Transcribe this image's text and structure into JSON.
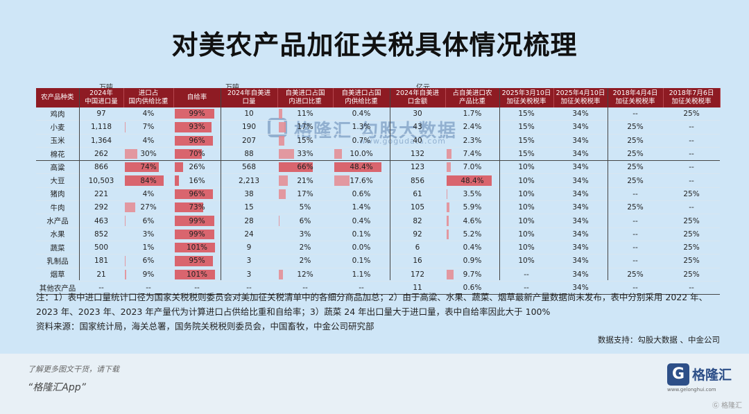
{
  "title": "对美农产品加征关税具体情况梳理",
  "units": {
    "wan_dun_1": "万吨",
    "wan_dun_2": "万吨",
    "yi_yuan": "亿元"
  },
  "headers": [
    "农产品种类",
    "2024年\n中国进口量",
    "进口占\n国内供给比重",
    "自给率",
    "2024年自美进\n口量",
    "自美进口占国\n内进口比重",
    "自美进口占国\n内供给比重",
    "2024年自美进\n口金额",
    "占自美进口农\n产品比重",
    "2025年3月10日\n加征关税税率",
    "2025年4月10日\n加征关税税率",
    "2018年4月4日\n加征关税税率",
    "2018年7月6日\n加征关税税率"
  ],
  "rows": [
    {
      "name": "鸡肉",
      "import": "97",
      "imp_share": "4%",
      "self": "99%",
      "us_imp": "10",
      "us_share": "11%",
      "us_supply": "0.4%",
      "us_amt": "30",
      "us_ag": "1.7%",
      "r1": "15%",
      "r2": "34%",
      "r3": "--",
      "r4": "25%"
    },
    {
      "name": "小麦",
      "import": "1,118",
      "imp_share": "7%",
      "self": "93%",
      "us_imp": "190",
      "us_share": "17%",
      "us_supply": "1.3%",
      "us_amt": "43",
      "us_ag": "2.4%",
      "r1": "15%",
      "r2": "34%",
      "r3": "25%",
      "r4": "--"
    },
    {
      "name": "玉米",
      "import": "1,364",
      "imp_share": "4%",
      "self": "96%",
      "us_imp": "207",
      "us_share": "15%",
      "us_supply": "0.7%",
      "us_amt": "40",
      "us_ag": "2.3%",
      "r1": "15%",
      "r2": "34%",
      "r3": "25%",
      "r4": "--"
    },
    {
      "name": "棉花",
      "import": "262",
      "imp_share": "30%",
      "self": "70%",
      "us_imp": "88",
      "us_share": "33%",
      "us_supply": "10.0%",
      "us_amt": "132",
      "us_ag": "7.4%",
      "r1": "15%",
      "r2": "34%",
      "r3": "25%",
      "r4": "--"
    },
    {
      "name": "高粱",
      "import": "866",
      "imp_share": "74%",
      "self": "26%",
      "us_imp": "568",
      "us_share": "66%",
      "us_supply": "48.4%",
      "us_amt": "123",
      "us_ag": "7.0%",
      "r1": "10%",
      "r2": "34%",
      "r3": "25%",
      "r4": "--"
    },
    {
      "name": "大豆",
      "import": "10,503",
      "imp_share": "84%",
      "self": "16%",
      "us_imp": "2,213",
      "us_share": "21%",
      "us_supply": "17.6%",
      "us_amt": "856",
      "us_ag": "48.4%",
      "r1": "10%",
      "r2": "34%",
      "r3": "25%",
      "r4": "--"
    },
    {
      "name": "猪肉",
      "import": "221",
      "imp_share": "4%",
      "self": "96%",
      "us_imp": "38",
      "us_share": "17%",
      "us_supply": "0.6%",
      "us_amt": "61",
      "us_ag": "3.5%",
      "r1": "10%",
      "r2": "34%",
      "r3": "--",
      "r4": "25%"
    },
    {
      "name": "牛肉",
      "import": "292",
      "imp_share": "27%",
      "self": "73%",
      "us_imp": "15",
      "us_share": "5%",
      "us_supply": "1.4%",
      "us_amt": "105",
      "us_ag": "5.9%",
      "r1": "10%",
      "r2": "34%",
      "r3": "25%",
      "r4": "--"
    },
    {
      "name": "水产品",
      "import": "463",
      "imp_share": "6%",
      "self": "99%",
      "us_imp": "28",
      "us_share": "6%",
      "us_supply": "0.4%",
      "us_amt": "82",
      "us_ag": "4.6%",
      "r1": "10%",
      "r2": "34%",
      "r3": "--",
      "r4": "25%"
    },
    {
      "name": "水果",
      "import": "852",
      "imp_share": "3%",
      "self": "99%",
      "us_imp": "24",
      "us_share": "3%",
      "us_supply": "0.1%",
      "us_amt": "92",
      "us_ag": "5.2%",
      "r1": "10%",
      "r2": "34%",
      "r3": "--",
      "r4": "25%"
    },
    {
      "name": "蔬菜",
      "import": "500",
      "imp_share": "1%",
      "self": "101%",
      "us_imp": "9",
      "us_share": "2%",
      "us_supply": "0.0%",
      "us_amt": "6",
      "us_ag": "0.4%",
      "r1": "10%",
      "r2": "34%",
      "r3": "--",
      "r4": "25%"
    },
    {
      "name": "乳制品",
      "import": "181",
      "imp_share": "6%",
      "self": "95%",
      "us_imp": "3",
      "us_share": "2%",
      "us_supply": "0.1%",
      "us_amt": "16",
      "us_ag": "0.9%",
      "r1": "10%",
      "r2": "34%",
      "r3": "--",
      "r4": "25%"
    },
    {
      "name": "烟草",
      "import": "21",
      "imp_share": "9%",
      "self": "101%",
      "us_imp": "3",
      "us_share": "12%",
      "us_supply": "1.1%",
      "us_amt": "172",
      "us_ag": "9.7%",
      "r1": "--",
      "r2": "34%",
      "r3": "25%",
      "r4": "25%"
    },
    {
      "name": "其他农产品",
      "import": "--",
      "imp_share": "--",
      "self": "--",
      "us_imp": "--",
      "us_share": "--",
      "us_supply": "--",
      "us_amt": "11",
      "us_ag": "0.6%",
      "r1": "--",
      "r2": "34%",
      "r3": "--",
      "r4": "--"
    }
  ],
  "bars": {
    "imp_share": [
      4,
      7,
      4,
      30,
      74,
      84,
      4,
      27,
      6,
      3,
      1,
      6,
      9
    ],
    "self": [
      99,
      93,
      96,
      70,
      26,
      16,
      96,
      73,
      99,
      99,
      101,
      95,
      101
    ],
    "us_share": [
      11,
      17,
      15,
      33,
      66,
      21,
      17,
      5,
      6,
      3,
      2,
      2,
      12
    ],
    "us_supply": [
      0.4,
      1.3,
      0.7,
      10.0,
      48.4,
      17.6,
      0.6,
      1.4,
      0.4,
      0.1,
      0.0,
      0.1,
      1.1
    ],
    "us_ag": [
      1.7,
      2.4,
      2.3,
      7.4,
      7.0,
      48.4,
      3.5,
      5.9,
      4.6,
      5.2,
      0.4,
      0.9,
      9.7
    ]
  },
  "watermark": {
    "name": "格隆汇 勾股大数据",
    "url": "www.gogudata.com"
  },
  "notes": "注：1）表中进口量统计口径为国家关税税则委员会对美加征关税清单中的各细分商品加总；2）由于高粱、水果、蔬菜、烟草最新产量数据尚未发布，表中分别采用 2022 年、2023 年、2023 年、2023 年产量代为计算进口占供给比重和自给率；3）蔬菜 24 年出口量大于进口量，表中自给率因此大于 100%",
  "source": "资料来源：国家统计局，海关总署，国务院关税税则委员会，中国畜牧，中金公司研究部",
  "credit": "数据支持：勾股大数据 、中金公司",
  "footer": {
    "line1": "了解更多图文干货，请下载",
    "line2": "“格隆汇App”",
    "brand": "格隆汇",
    "brand_icon": "G",
    "brand_url": "www.gelonghui.com",
    "corner": "Ⓖ 格隆汇"
  }
}
